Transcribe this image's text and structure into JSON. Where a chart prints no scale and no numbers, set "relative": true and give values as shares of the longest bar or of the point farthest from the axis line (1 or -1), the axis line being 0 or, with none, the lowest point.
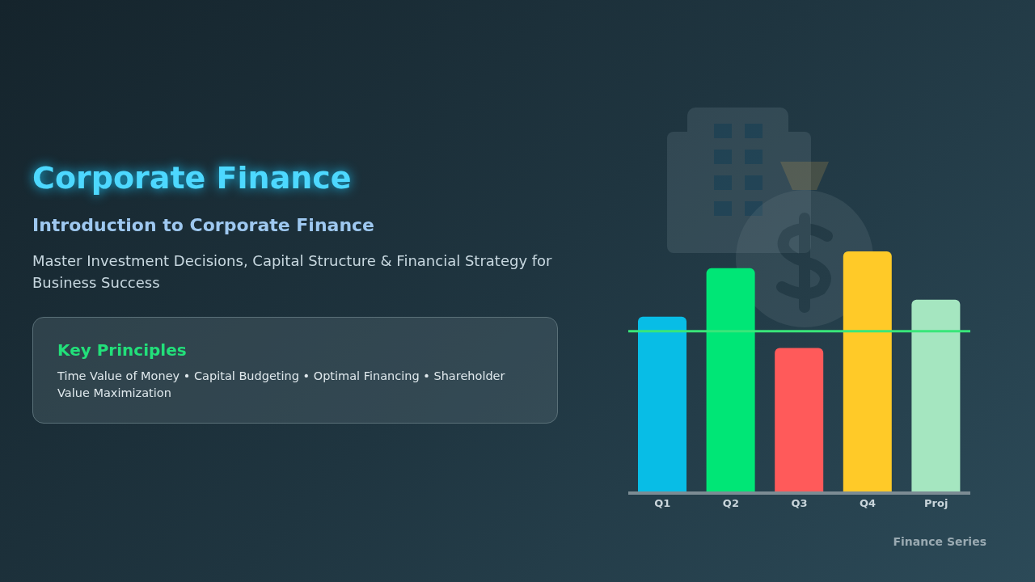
{
  "chart_data": {
    "type": "bar",
    "title": "Corporate Finance",
    "subtitle": "Introduction to Corporate Finance",
    "annotations": [
      "Master Investment Decisions, Capital Structure & Financial Strategy for Business Success",
      "Key Principles",
      "Time Value of Money • Capital Budgeting • Optimal Financing • Shareholder Value Maximization",
      "Finance Series"
    ],
    "categories": [
      "Q1",
      "Q2",
      "Q3",
      "Q4",
      "Proj"
    ],
    "values": [
      0.73,
      0.93,
      0.6,
      1,
      0.8
    ],
    "colors": [
      "#08bde6",
      "#00e676",
      "#ff5a5a",
      "#ffca28",
      "#a5e6c0"
    ],
    "relative": true,
    "ref_lines": [
      {
        "axis": "y",
        "value": 0.67,
        "color": "#39e67a"
      }
    ]
  }
}
